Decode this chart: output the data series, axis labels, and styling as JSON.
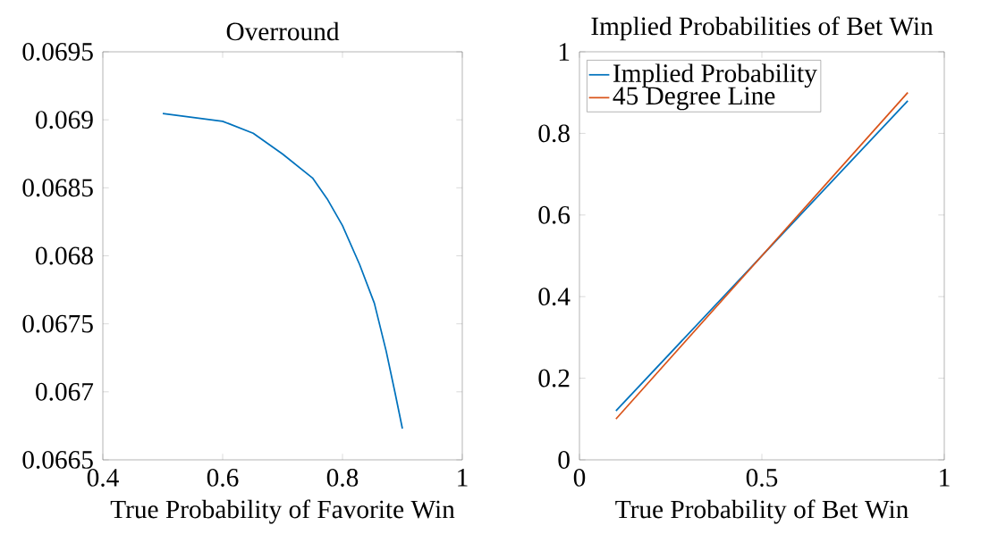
{
  "chart_data": [
    {
      "type": "line",
      "title": "Overround",
      "xlabel": "True Probability of Favorite Win",
      "xlim": [
        0.4,
        1
      ],
      "ylim": [
        0.0665,
        0.0695
      ],
      "xticks": [
        0.4,
        0.6,
        0.8,
        1
      ],
      "yticks": [
        0.0665,
        0.067,
        0.0675,
        0.068,
        0.0685,
        0.069,
        0.0695
      ],
      "series": [
        {
          "color": "#0072bd",
          "x": [
            0.5,
            0.6,
            0.651,
            0.7,
            0.75,
            0.7744,
            0.8,
            0.8286,
            0.8532,
            0.8729,
            0.8877,
            0.9
          ],
          "values": [
            0.069046,
            0.068989,
            0.068901,
            0.068748,
            0.068572,
            0.068419,
            0.068222,
            0.067936,
            0.067651,
            0.0673,
            0.066994,
            0.06673
          ]
        }
      ]
    },
    {
      "type": "line",
      "title": "Implied Probabilities of Bet Win",
      "xlabel": "True Probability of Bet Win",
      "xlim": [
        0,
        1
      ],
      "ylim": [
        0,
        1
      ],
      "xticks": [
        0,
        0.5,
        1
      ],
      "yticks": [
        0,
        0.2,
        0.4,
        0.6,
        0.8,
        1
      ],
      "legend": "top left",
      "series": [
        {
          "name": "Implied Probability",
          "color": "#0072bd",
          "x": [
            0.1,
            0.9
          ],
          "values": [
            0.12,
            0.88
          ]
        },
        {
          "name": "45 Degree Line",
          "color": "#d95319",
          "x": [
            0.1,
            0.9
          ],
          "values": [
            0.1,
            0.9
          ]
        }
      ]
    }
  ]
}
